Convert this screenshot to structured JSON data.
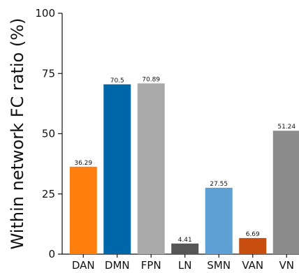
{
  "chart_data": {
    "type": "bar",
    "title": "",
    "xlabel": "",
    "ylabel": "Within network FC ratio (%)",
    "ylim": [
      0,
      100
    ],
    "yticks": [
      0,
      25,
      50,
      75,
      100
    ],
    "grid": false,
    "categories": [
      "DAN",
      "DMN",
      "FPN",
      "LN",
      "SMN",
      "VAN",
      "VN"
    ],
    "values": [
      36.29,
      70.5,
      70.89,
      4.41,
      27.55,
      6.69,
      51.24
    ],
    "value_labels": [
      "36.29",
      "70.5",
      "70.89",
      "4.41",
      "27.55",
      "6.69",
      "51.24"
    ],
    "colors": [
      "#ff7f0e",
      "#0068a8",
      "#aaaaaa",
      "#555555",
      "#5e9fd4",
      "#c74e0e",
      "#8c8c8c"
    ]
  }
}
